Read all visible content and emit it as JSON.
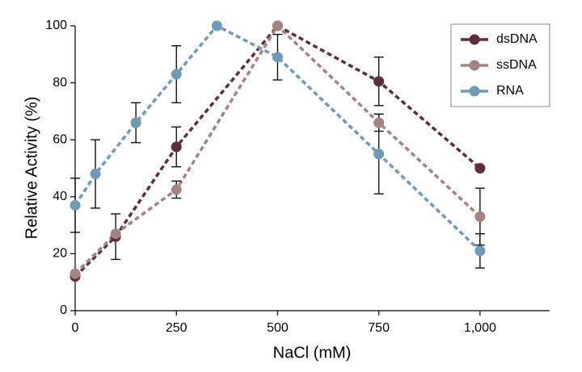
{
  "chart_data": {
    "type": "line",
    "x_label": "NaCl (mM)",
    "y_label": "Relative Activity (%)",
    "xlim": [
      0,
      1172
    ],
    "ylim": [
      0,
      100
    ],
    "xticks": [
      0,
      250,
      500,
      750,
      {
        "value": 1000,
        "label": "1,000"
      }
    ],
    "yticks": [
      0,
      20,
      40,
      60,
      80,
      100
    ],
    "legend": "upper right",
    "series": [
      {
        "name": "dsDNA",
        "color": "#5e2d3f",
        "x": [
          0,
          100,
          250,
          500,
          750,
          1000
        ],
        "values": [
          12,
          26,
          57.5,
          100,
          80.5,
          50
        ],
        "errors": [
          null,
          8,
          7,
          null,
          8.5,
          null
        ]
      },
      {
        "name": "ssDNA",
        "color": "#a58383",
        "x": [
          0,
          100,
          250,
          500,
          750,
          1000
        ],
        "values": [
          13,
          27,
          42.5,
          100,
          66,
          33
        ],
        "errors": [
          null,
          null,
          3,
          null,
          3,
          10
        ]
      },
      {
        "name": "RNA",
        "color": "#6f9ab8",
        "x": [
          0,
          50,
          150,
          250,
          350,
          500,
          750,
          1000
        ],
        "values": [
          37,
          48,
          66,
          83,
          100,
          89,
          55,
          21
        ],
        "errors": [
          9.5,
          12,
          7,
          10,
          null,
          8,
          14,
          6
        ]
      }
    ]
  }
}
